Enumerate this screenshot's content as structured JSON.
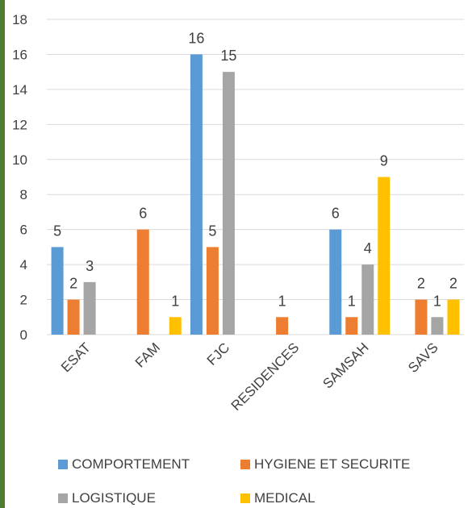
{
  "chart_data": {
    "type": "bar",
    "title": "",
    "xlabel": "",
    "ylabel": "",
    "ylim": [
      0,
      18
    ],
    "ytick_step": 2,
    "grid": true,
    "legend_position": "bottom",
    "categories": [
      "ESAT",
      "FAM",
      "FJC",
      "RESIDENCES",
      "SAMSAH",
      "SAVS"
    ],
    "series": [
      {
        "name": "COMPORTEMENT",
        "color": "#5b9bd5",
        "values": [
          5,
          0,
          16,
          0,
          6,
          0
        ]
      },
      {
        "name": "HYGIENE ET SECURITE",
        "color": "#ed7d31",
        "values": [
          2,
          6,
          5,
          1,
          1,
          2
        ]
      },
      {
        "name": "LOGISTIQUE",
        "color": "#a5a5a5",
        "values": [
          3,
          0,
          15,
          0,
          4,
          1
        ]
      },
      {
        "name": "MEDICAL",
        "color": "#ffc000",
        "values": [
          0,
          1,
          0,
          0,
          9,
          2
        ]
      }
    ]
  }
}
